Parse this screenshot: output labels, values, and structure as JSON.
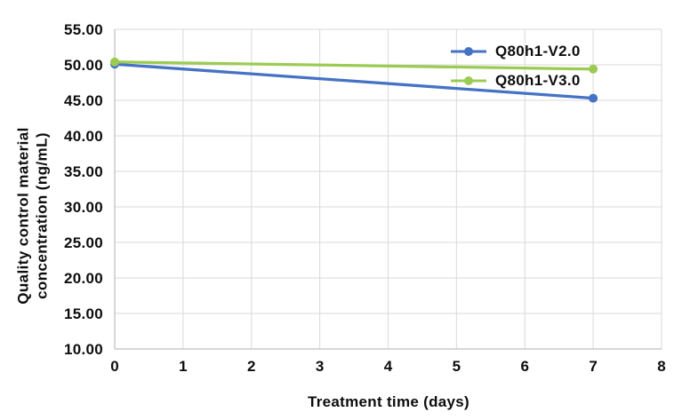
{
  "chart_data": {
    "type": "line",
    "title": "",
    "xlabel": "Treatment time (days)",
    "ylabel": "Quality control material concentration (ng/mL)",
    "ylabel_lines": [
      "Quality control material",
      "concentration (ng/mL)"
    ],
    "xlim": [
      0,
      8
    ],
    "ylim": [
      10,
      55
    ],
    "x_ticks": [
      0,
      1,
      2,
      3,
      4,
      5,
      6,
      7,
      8
    ],
    "y_ticks": [
      55,
      50,
      45,
      40,
      35,
      30,
      25,
      20,
      15,
      10
    ],
    "y_tick_decimals": 2,
    "grid": true,
    "legend_position": "inside-top-right",
    "series": [
      {
        "name": "Q80h1-V2.0",
        "color": "#4472C4",
        "x": [
          0,
          7
        ],
        "values": [
          50.1,
          45.3
        ]
      },
      {
        "name": "Q80h1-V3.0",
        "color": "#9CCB53",
        "x": [
          0,
          7
        ],
        "values": [
          50.4,
          49.4
        ]
      }
    ],
    "colors": {
      "gridline": "#D9D9D9",
      "axis_line": "#BFBFBF",
      "text": "#0D0D0D",
      "background": "#FFFFFF"
    }
  }
}
